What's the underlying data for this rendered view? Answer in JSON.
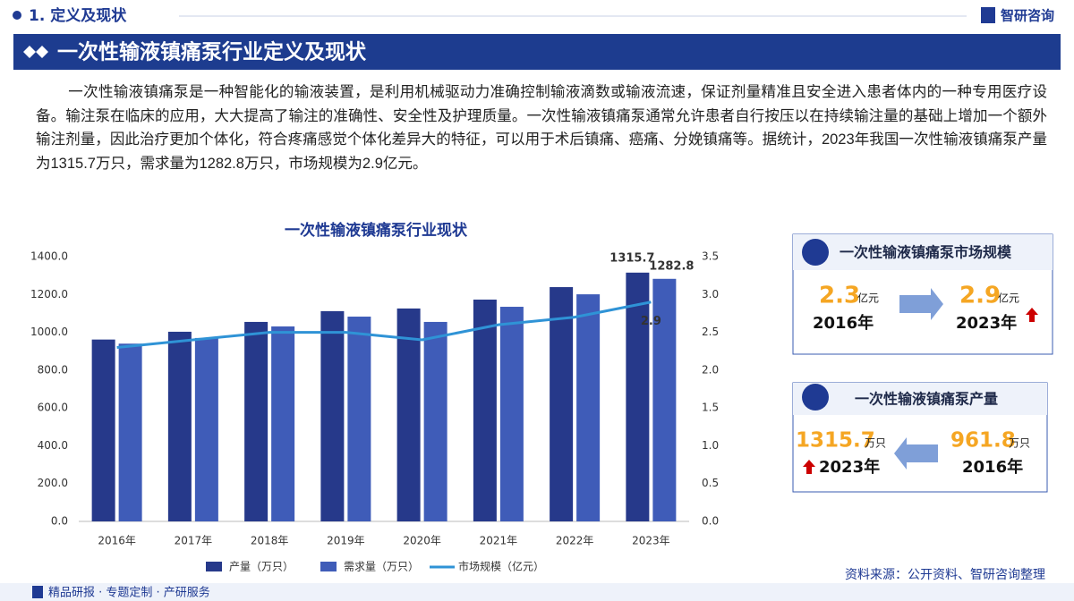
{
  "header": {
    "section": "1. 定义及现状",
    "brand": "智研咨询",
    "title": "一次性输液镇痛泵行业定义及现状"
  },
  "paragraph": "一次性输液镇痛泵是一种智能化的输液装置，是利用机械驱动力准确控制输液滴数或输液流速，保证剂量精准且安全进入患者体内的一种专用医疗设备。输注泵在临床的应用，大大提高了输注的准确性、安全性及护理质量。一次性输液镇痛泵通常允许患者自行按压以在持续输注量的基础上增加一个额外输注剂量，因此治疗更加个体化，符合疼痛感觉个体化差异大的特征，可以用于术后镇痛、癌痛、分娩镇痛等。据统计，2023年我国一次性输液镇痛泵产量为1315.7万只，需求量为1282.8万只，市场规模为2.9亿元。",
  "chart_data": {
    "type": "bar",
    "title": "一次性输液镇痛泵行业现状",
    "categories": [
      "2016年",
      "2017年",
      "2018年",
      "2019年",
      "2020年",
      "2021年",
      "2022年",
      "2023年"
    ],
    "series": [
      {
        "name": "产量（万只）",
        "color": "#26398a",
        "values": [
          961.8,
          1003,
          1055,
          1112,
          1126,
          1173,
          1239,
          1315.7
        ]
      },
      {
        "name": "需求量（万只）",
        "color": "#3f5cb8",
        "values": [
          940,
          970,
          1031,
          1083,
          1055,
          1135,
          1201,
          1282.8
        ]
      },
      {
        "name": "市场规模（亿元）",
        "color": "#2f93d6",
        "type": "line",
        "axis": "y2",
        "values": [
          2.3,
          2.4,
          2.5,
          2.5,
          2.4,
          2.6,
          2.7,
          2.9
        ]
      }
    ],
    "ylim": [
      0,
      1400
    ],
    "yticks": [
      {
        "value": 0,
        "label": "0.0"
      },
      {
        "value": 200,
        "label": "200.0"
      },
      {
        "value": 400,
        "label": "400.0"
      },
      {
        "value": 600,
        "label": "600.0"
      },
      {
        "value": 800,
        "label": "800.0"
      },
      {
        "value": 1000,
        "label": "1000.0"
      },
      {
        "value": 1200,
        "label": "1200.0"
      },
      {
        "value": 1400,
        "label": "1400.0"
      }
    ],
    "y2lim": [
      0,
      3.5
    ],
    "y2ticks": [
      {
        "value": 0,
        "label": "0.0"
      },
      0.5,
      {
        "value": 1,
        "label": "1.0"
      },
      1.5,
      {
        "value": 2,
        "label": "2.0"
      },
      2.5,
      {
        "value": 3,
        "label": "3.0"
      },
      3.5
    ],
    "grid": false,
    "legend": "bottom"
  },
  "cards": [
    {
      "title": "一次性输液镇痛泵市场规模",
      "from": {
        "value": "2.3",
        "unit": "亿元",
        "year": "2016年"
      },
      "to": {
        "value": "2.9",
        "unit": "亿元",
        "year": "2023年"
      }
    },
    {
      "title": "一次性输液镇痛泵产量",
      "left": {
        "value": "1315.7",
        "unit": "万只",
        "year": "2023年"
      },
      "right": {
        "value": "961.8",
        "unit": "万只",
        "year": "2016年"
      }
    }
  ],
  "source": "资料来源：公开资料、智研咨询整理",
  "footer": "精品研报 · 专题定制 · 产研服务"
}
